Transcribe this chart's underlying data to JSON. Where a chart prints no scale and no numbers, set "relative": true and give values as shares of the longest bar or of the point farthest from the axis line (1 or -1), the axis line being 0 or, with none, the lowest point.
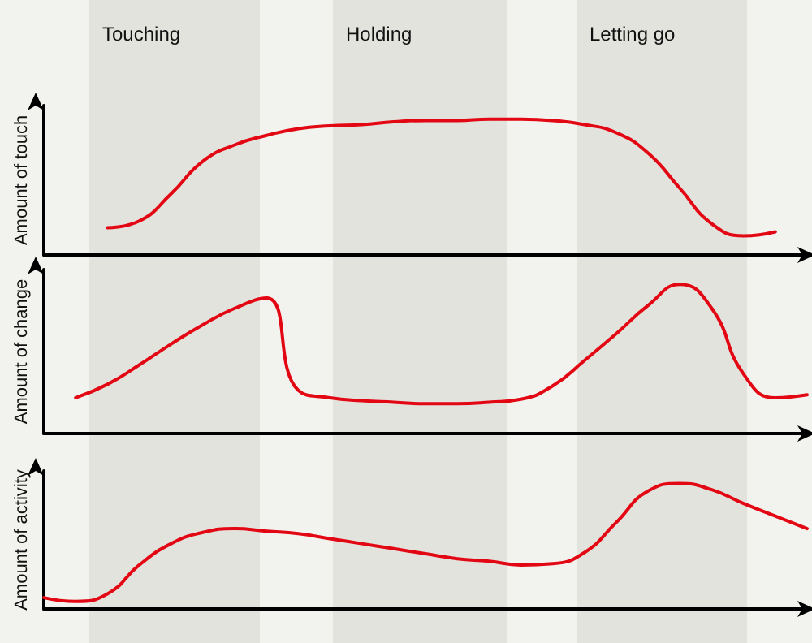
{
  "chart_data": [
    {
      "type": "line",
      "relative": true,
      "ylabel": "Amount of touch",
      "annotations": [
        "Touching",
        "Holding",
        "Letting go"
      ],
      "marker": "none",
      "line_style": "solid",
      "categories": [
        null,
        null,
        null,
        null,
        null,
        null,
        null,
        null,
        null,
        null,
        null,
        null,
        null,
        null,
        null,
        null,
        null,
        null,
        null,
        null,
        null,
        null,
        null,
        null,
        null
      ],
      "series": [
        {
          "color": "#e30613",
          "values": [
            null,
            null,
            0.2,
            0.25,
            0.45,
            0.69,
            0.81,
            0.88,
            0.93,
            0.95,
            0.96,
            0.98,
            0.99,
            0.99,
            1,
            1,
            0.99,
            0.96,
            0.9,
            0.75,
            0.49,
            0.23,
            0.14,
            0.17,
            null
          ]
        }
      ]
    },
    {
      "type": "line",
      "relative": true,
      "ylabel": "Amount of change",
      "marker": "none",
      "line_style": "solid",
      "categories": [
        null,
        null,
        null,
        null,
        null,
        null,
        null,
        null,
        null,
        null,
        null,
        null,
        null,
        null,
        null,
        null,
        null,
        null,
        null,
        null,
        null,
        null,
        null,
        null,
        null
      ],
      "series": [
        {
          "color": "#e30613",
          "values": [
            null,
            0.24,
            0.33,
            0.46,
            0.6,
            0.73,
            0.84,
            0.91,
            0.29,
            0.24,
            0.22,
            0.21,
            0.2,
            0.2,
            0.21,
            0.23,
            0.32,
            0.49,
            0.67,
            0.86,
            1,
            0.84,
            0.4,
            0.24,
            0.26
          ]
        }
      ]
    },
    {
      "type": "line",
      "relative": true,
      "ylabel": "Amount of activity",
      "marker": "none",
      "line_style": "solid",
      "categories": [
        null,
        null,
        null,
        null,
        null,
        null,
        null,
        null,
        null,
        null,
        null,
        null,
        null,
        null,
        null,
        null,
        null,
        null,
        null,
        null,
        null,
        null,
        null,
        null,
        null
      ],
      "series": [
        {
          "color": "#e30613",
          "values": [
            0.09,
            0.06,
            0.12,
            0.35,
            0.52,
            0.61,
            0.64,
            0.62,
            0.6,
            0.56,
            0.52,
            0.48,
            0.44,
            0.4,
            0.38,
            0.35,
            0.36,
            0.45,
            0.69,
            0.94,
            1,
            0.95,
            0.84,
            0.74,
            0.64
          ]
        }
      ]
    }
  ]
}
